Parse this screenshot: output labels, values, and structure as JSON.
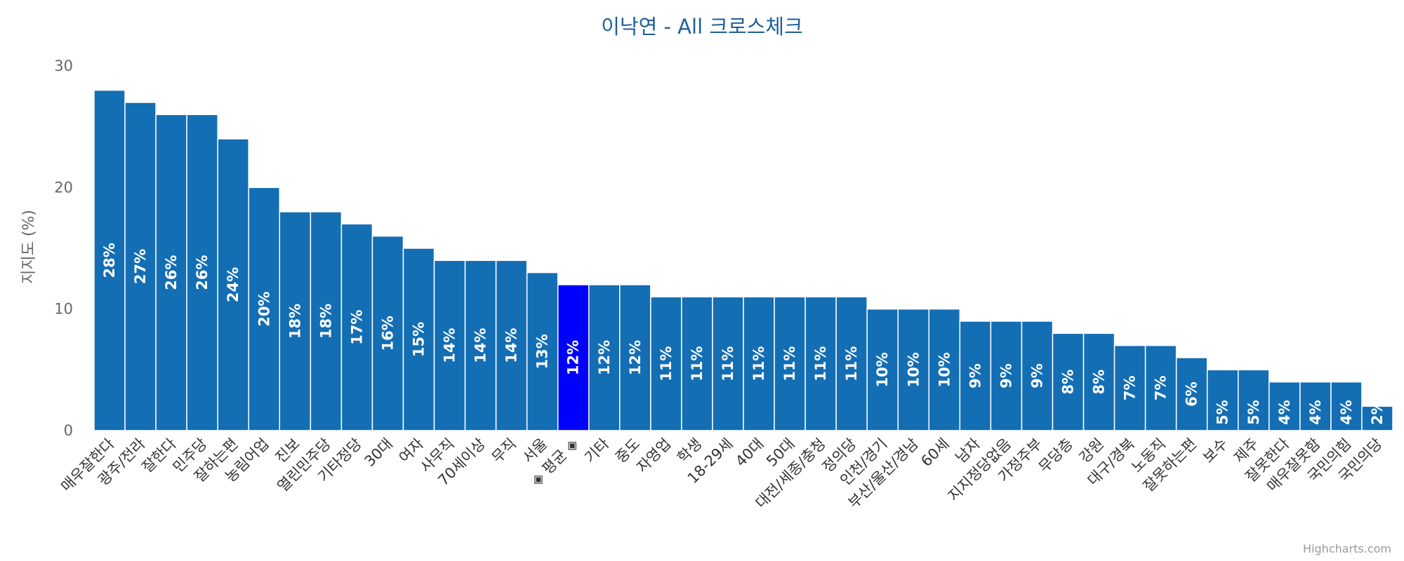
{
  "chart_data": {
    "type": "bar",
    "title": "이낙연 - All 크로스체크",
    "ylabel": "지지도 (%)",
    "ylim": [
      0,
      30
    ],
    "yticks": [
      0,
      10,
      20,
      30
    ],
    "grid": false,
    "legend": "none",
    "credits": "Highcharts.com",
    "categories": [
      "매우잘한다",
      "광주/전라",
      "잘한다",
      "민주당",
      "잘하는편",
      "농림어업",
      "진보",
      "열린민주당",
      "기타정당",
      "30대",
      "여자",
      "사무직",
      "70세이상",
      "무직",
      "서울",
      "◈ 평균 ◈",
      "기타",
      "중도",
      "자영업",
      "학생",
      "18-29세",
      "40대",
      "50대",
      "대전/세종/충청",
      "정의당",
      "인천/경기",
      "부산/울산/경남",
      "60세",
      "남자",
      "지지정당없음",
      "가정주부",
      "무당층",
      "강원",
      "대구/경북",
      "노동직",
      "잘못하는편",
      "보수",
      "제주",
      "잘못한다",
      "매우잘못함",
      "국민의힘",
      "국민의당"
    ],
    "values": [
      28,
      27,
      26,
      26,
      24,
      20,
      18,
      18,
      17,
      16,
      15,
      14,
      14,
      14,
      13,
      12,
      12,
      12,
      11,
      11,
      11,
      11,
      11,
      11,
      11,
      10,
      10,
      10,
      9,
      9,
      9,
      8,
      8,
      7,
      7,
      6,
      5,
      5,
      4,
      4,
      4,
      2
    ],
    "data_labels": [
      "28%",
      "27%",
      "26%",
      "26%",
      "24%",
      "20%",
      "18%",
      "18%",
      "17%",
      "16%",
      "15%",
      "14%",
      "14%",
      "14%",
      "13%",
      "12%",
      "12%",
      "12%",
      "11%",
      "11%",
      "11%",
      "11%",
      "11%",
      "11%",
      "11%",
      "10%",
      "10%",
      "10%",
      "9%",
      "9%",
      "9%",
      "8%",
      "8%",
      "7%",
      "7%",
      "6%",
      "5%",
      "5%",
      "4%",
      "4%",
      "4%",
      "2%"
    ],
    "highlight_index": 15,
    "colors": {
      "bar": "#136eb4",
      "highlight": "#0000ff",
      "title": "#1f5f99"
    }
  }
}
